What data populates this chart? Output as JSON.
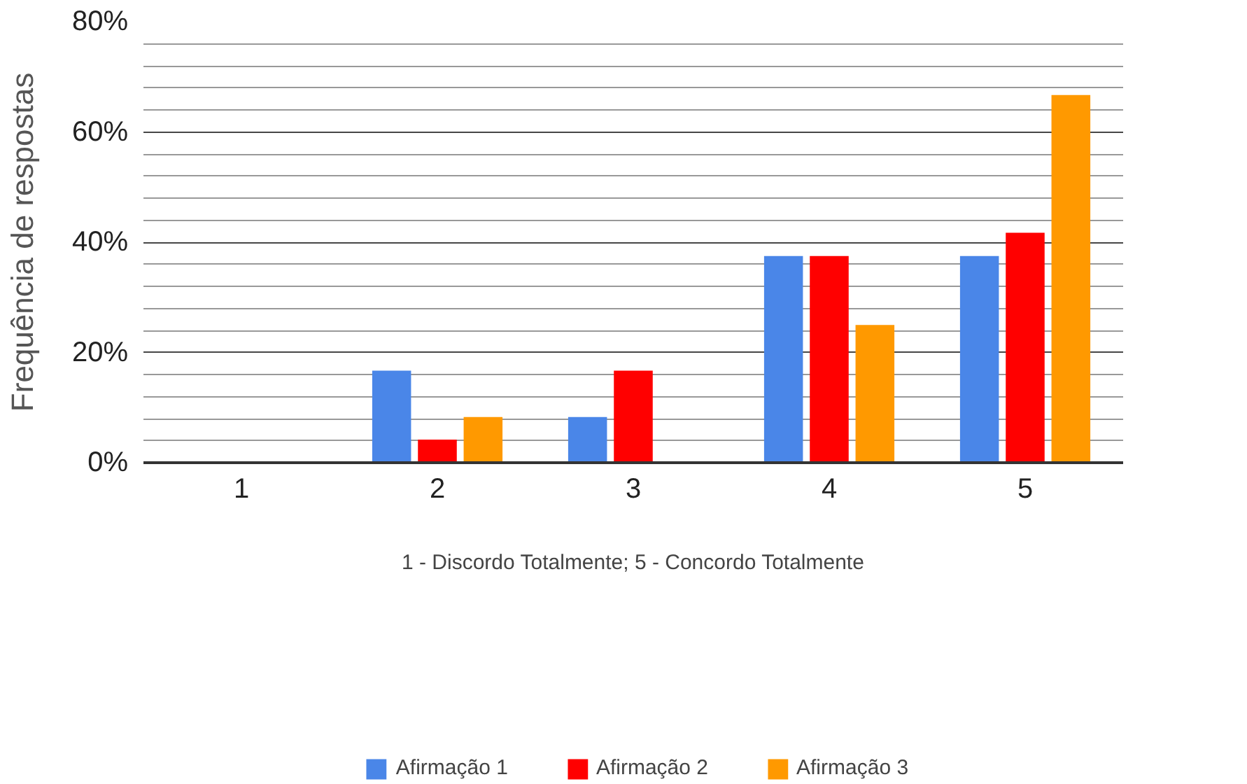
{
  "chart_data": {
    "type": "bar",
    "categories": [
      "1",
      "2",
      "3",
      "4",
      "5"
    ],
    "xlabel": "1 - Discordo Totalmente; 5 - Concordo Totalmente",
    "ylabel": "Frequência de respostas",
    "ylim": [
      0,
      80
    ],
    "yticks": [
      {
        "value": 0,
        "label": "0%"
      },
      {
        "value": 20,
        "label": "20%"
      },
      {
        "value": 40,
        "label": "40%"
      },
      {
        "value": 60,
        "label": "60%"
      },
      {
        "value": 80,
        "label": "80%"
      }
    ],
    "grid": "y",
    "legend": "bottom",
    "series": [
      {
        "name": "Afirmação 1",
        "color": "#4a86e8",
        "values": [
          0,
          16.7,
          8.3,
          37.5,
          37.5
        ]
      },
      {
        "name": "Afirmação 2",
        "color": "#ff0000",
        "values": [
          0,
          4.2,
          16.7,
          37.5,
          41.7
        ]
      },
      {
        "name": "Afirmação 3",
        "color": "#ff9900",
        "values": [
          0,
          8.3,
          0,
          25,
          66.7
        ]
      }
    ]
  }
}
